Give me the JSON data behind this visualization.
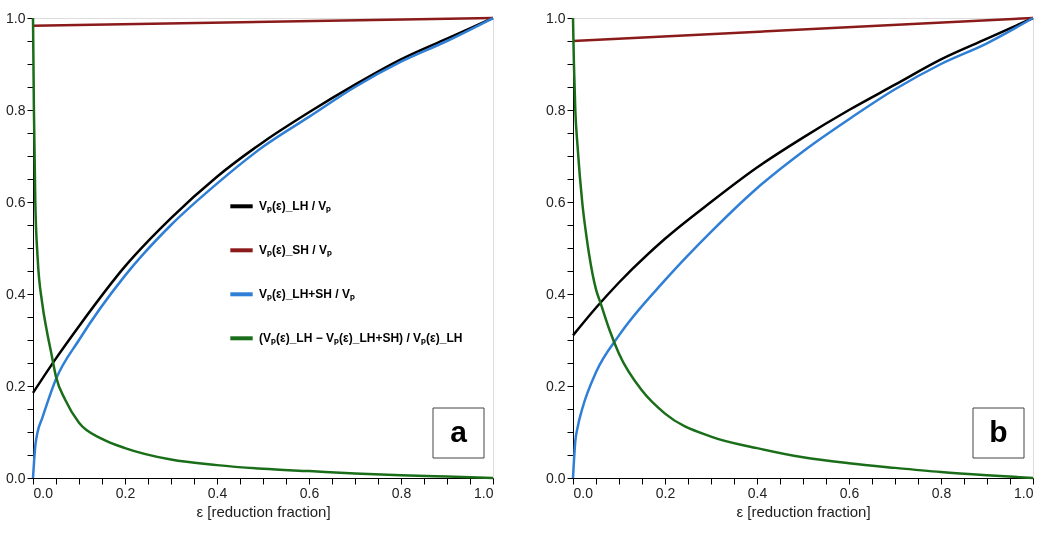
{
  "chart_data": [
    {
      "type": "line",
      "xlabel": "ε [reduction fraction]",
      "xlim": [
        0,
        1
      ],
      "ylim": [
        0,
        1
      ],
      "grid": false,
      "legend": "right",
      "marker": "none",
      "line_style": "solid",
      "annotations": [
        "a"
      ],
      "xticks": [
        {
          "value": 0,
          "label": "0.0"
        },
        {
          "value": 0.05,
          "label": null
        },
        {
          "value": 0.1,
          "label": null
        },
        {
          "value": 0.15,
          "label": null
        },
        0.2,
        {
          "value": 0.25,
          "label": null
        },
        {
          "value": 0.3,
          "label": null
        },
        {
          "value": 0.35,
          "label": null
        },
        0.4,
        {
          "value": 0.45,
          "label": null
        },
        {
          "value": 0.5,
          "label": null
        },
        {
          "value": 0.55,
          "label": null
        },
        0.6,
        {
          "value": 0.65,
          "label": null
        },
        {
          "value": 0.7,
          "label": null
        },
        {
          "value": 0.75,
          "label": null
        },
        0.8,
        {
          "value": 0.85,
          "label": null
        },
        {
          "value": 0.9,
          "label": null
        },
        {
          "value": 0.95,
          "label": null
        },
        {
          "value": 1,
          "label": "1.0"
        }
      ],
      "yticks": [
        {
          "value": 0,
          "label": "0.0"
        },
        {
          "value": 0.05,
          "label": null
        },
        {
          "value": 0.1,
          "label": null
        },
        {
          "value": 0.15,
          "label": null
        },
        0.2,
        {
          "value": 0.25,
          "label": null
        },
        {
          "value": 0.3,
          "label": null
        },
        {
          "value": 0.35,
          "label": null
        },
        0.4,
        {
          "value": 0.45,
          "label": null
        },
        {
          "value": 0.5,
          "label": null
        },
        {
          "value": 0.55,
          "label": null
        },
        0.6,
        {
          "value": 0.65,
          "label": null
        },
        {
          "value": 0.7,
          "label": null
        },
        {
          "value": 0.75,
          "label": null
        },
        0.8,
        {
          "value": 0.85,
          "label": null
        },
        {
          "value": 0.9,
          "label": null
        },
        {
          "value": 0.95,
          "label": null
        },
        {
          "value": 1,
          "label": "1.0"
        }
      ],
      "series": [
        {
          "name": "Vₚ(ε)_LH / Vₚ",
          "color": "#000000",
          "x": [
            0,
            0.05,
            0.1,
            0.2,
            0.3,
            0.4,
            0.5,
            0.6,
            0.7,
            0.8,
            0.9,
            1
          ],
          "values": [
            0.185,
            0.26,
            0.33,
            0.46,
            0.565,
            0.655,
            0.73,
            0.795,
            0.855,
            0.91,
            0.955,
            1
          ]
        },
        {
          "name": "Vₚ(ε)_SH / Vₚ",
          "color": "#8b1a1a",
          "x": [
            0,
            1
          ],
          "values": [
            0.983,
            1
          ]
        },
        {
          "name": "Vₚ(ε)_LH+SH / Vₚ",
          "color": "#2f7fd6",
          "x": [
            0,
            0.005,
            0.01,
            0.02,
            0.05,
            0.1,
            0.2,
            0.3,
            0.4,
            0.5,
            0.6,
            0.7,
            0.8,
            0.9,
            1
          ],
          "values": [
            0,
            0.07,
            0.1,
            0.13,
            0.215,
            0.3,
            0.44,
            0.55,
            0.64,
            0.72,
            0.785,
            0.85,
            0.905,
            0.95,
            1
          ]
        },
        {
          "name": "(Vₚ(ε)_LH − Vₚ(ε)_LH+SH) / Vₚ(ε)_LH",
          "color": "#1a6e1a",
          "x": [
            0,
            0.002,
            0.005,
            0.01,
            0.02,
            0.03,
            0.04,
            0.05,
            0.07,
            0.1,
            0.15,
            0.2,
            0.3,
            0.4,
            0.5,
            0.6,
            0.7,
            0.8,
            0.9,
            1
          ],
          "values": [
            1,
            0.8,
            0.6,
            0.48,
            0.38,
            0.32,
            0.27,
            0.22,
            0.17,
            0.12,
            0.085,
            0.065,
            0.04,
            0.028,
            0.02,
            0.015,
            0.01,
            0.006,
            0.003,
            0
          ]
        }
      ]
    },
    {
      "type": "line",
      "xlabel": "ε [reduction fraction]",
      "xlim": [
        0,
        1
      ],
      "ylim": [
        0,
        1
      ],
      "grid": false,
      "legend": "right",
      "marker": "none",
      "line_style": "solid",
      "annotations": [
        "b"
      ],
      "xticks": [
        {
          "value": 0,
          "label": "0.0"
        },
        {
          "value": 0.05,
          "label": null
        },
        {
          "value": 0.1,
          "label": null
        },
        {
          "value": 0.15,
          "label": null
        },
        0.2,
        {
          "value": 0.25,
          "label": null
        },
        {
          "value": 0.3,
          "label": null
        },
        {
          "value": 0.35,
          "label": null
        },
        0.4,
        {
          "value": 0.45,
          "label": null
        },
        {
          "value": 0.5,
          "label": null
        },
        {
          "value": 0.55,
          "label": null
        },
        0.6,
        {
          "value": 0.65,
          "label": null
        },
        {
          "value": 0.7,
          "label": null
        },
        {
          "value": 0.75,
          "label": null
        },
        0.8,
        {
          "value": 0.85,
          "label": null
        },
        {
          "value": 0.9,
          "label": null
        },
        {
          "value": 0.95,
          "label": null
        },
        {
          "value": 1,
          "label": "1.0"
        }
      ],
      "yticks": [
        {
          "value": 0,
          "label": "0.0"
        },
        {
          "value": 0.05,
          "label": null
        },
        {
          "value": 0.1,
          "label": null
        },
        {
          "value": 0.15,
          "label": null
        },
        0.2,
        {
          "value": 0.25,
          "label": null
        },
        {
          "value": 0.3,
          "label": null
        },
        {
          "value": 0.35,
          "label": null
        },
        0.4,
        {
          "value": 0.45,
          "label": null
        },
        {
          "value": 0.5,
          "label": null
        },
        {
          "value": 0.55,
          "label": null
        },
        0.6,
        {
          "value": 0.65,
          "label": null
        },
        {
          "value": 0.7,
          "label": null
        },
        {
          "value": 0.75,
          "label": null
        },
        0.8,
        {
          "value": 0.85,
          "label": null
        },
        {
          "value": 0.9,
          "label": null
        },
        {
          "value": 0.95,
          "label": null
        },
        {
          "value": 1,
          "label": "1.0"
        }
      ],
      "series": [
        {
          "name": "Vₚ(ε)_LH / Vₚ",
          "color": "#000000",
          "x": [
            0,
            0.05,
            0.1,
            0.2,
            0.3,
            0.4,
            0.5,
            0.6,
            0.7,
            0.8,
            0.9,
            1
          ],
          "values": [
            0.31,
            0.37,
            0.425,
            0.52,
            0.6,
            0.675,
            0.74,
            0.8,
            0.855,
            0.91,
            0.955,
            1
          ]
        },
        {
          "name": "Vₚ(ε)_SH / Vₚ",
          "color": "#8b1a1a",
          "x": [
            0,
            1
          ],
          "values": [
            0.95,
            1
          ]
        },
        {
          "name": "Vₚ(ε)_LH+SH / Vₚ",
          "color": "#2f7fd6",
          "x": [
            0,
            0.005,
            0.01,
            0.02,
            0.05,
            0.1,
            0.2,
            0.3,
            0.4,
            0.5,
            0.6,
            0.7,
            0.8,
            0.9,
            1
          ],
          "values": [
            0,
            0.08,
            0.11,
            0.15,
            0.23,
            0.31,
            0.43,
            0.535,
            0.63,
            0.71,
            0.78,
            0.845,
            0.9,
            0.945,
            1
          ]
        },
        {
          "name": "(Vₚ(ε)_LH − Vₚ(ε)_LH+SH) / Vₚ(ε)_LH",
          "color": "#1a6e1a",
          "x": [
            0,
            0.002,
            0.005,
            0.01,
            0.02,
            0.03,
            0.05,
            0.06,
            0.08,
            0.1,
            0.15,
            0.2,
            0.3,
            0.4,
            0.5,
            0.6,
            0.7,
            0.8,
            0.9,
            1
          ],
          "values": [
            1,
            0.9,
            0.8,
            0.72,
            0.6,
            0.52,
            0.41,
            0.38,
            0.32,
            0.27,
            0.19,
            0.14,
            0.09,
            0.065,
            0.045,
            0.032,
            0.022,
            0.013,
            0.006,
            0
          ]
        }
      ]
    }
  ]
}
